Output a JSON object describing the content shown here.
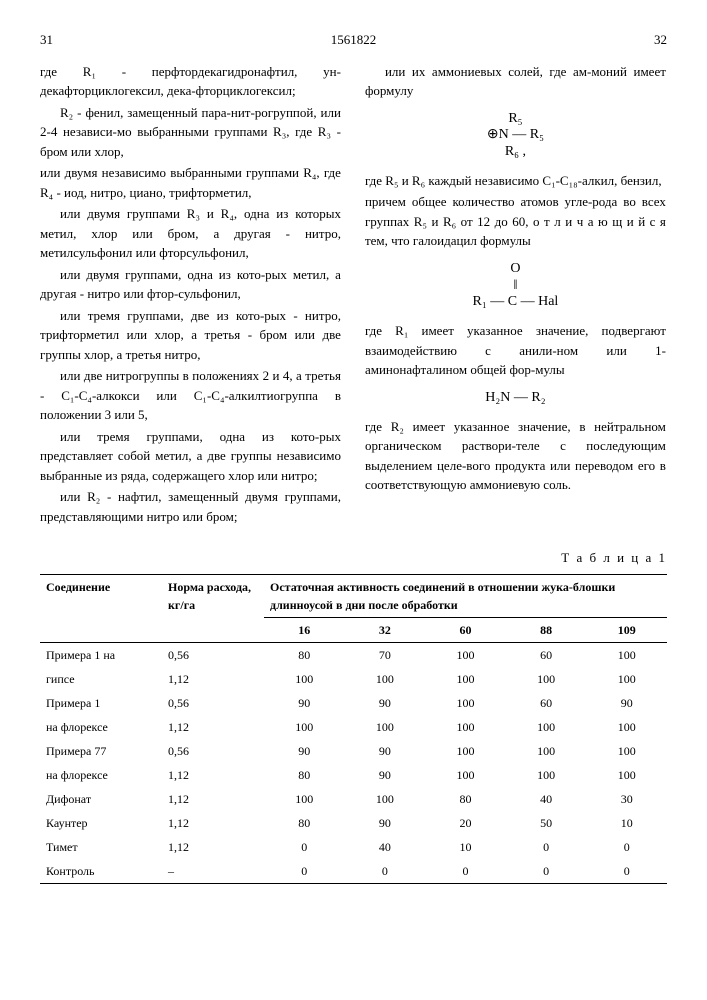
{
  "header": {
    "page_left": "31",
    "doc_number": "1561822",
    "page_right": "32"
  },
  "left_column": {
    "p1": "где R₁ - перфтордекагидронафтил, ун-декафторциклогексил, дека-фторциклогексил;",
    "p2": "R₂ - фенил, замещенный пара-нит-рогруппой, или 2-4 независи-мо выбранными группами R₃, где R₃ - бром или хлор,",
    "p3": "или двумя независимо выбранными группами R₄, где R₄ - иод, нитро, циано, трифторметил,",
    "p4": "или двумя группами R₃ и R₄, одна из которых метил, хлор или бром, а другая - нитро, метилсульфонил или фторсульфонил,",
    "p5": "или двумя группами, одна из кото-рых метил, а другая - нитро или фтор-сульфонил,",
    "p6": "или тремя группами, две из кото-рых - нитро, трифторметил или хлор, а третья - бром или две группы хлор, а третья нитро,",
    "p7": "или две нитрогруппы в положениях 2 и 4, а третья - C₁-C₄-алкокси или C₁-C₄-алкилтиогруппа в положении 3 или 5,",
    "p8": "или тремя группами, одна из кото-рых представляет собой метил, а две группы независимо выбранные из ряда, содержащего хлор или нитро;",
    "p9": "или R₂ - нафтил, замещенный двумя группами, представляющими нитро или бром;"
  },
  "right_column": {
    "p1": "или их аммониевых солей, где ам-моний имеет формулу",
    "formula1_line1": "    R₅",
    "formula1_line2": "⊕N — R₅",
    "formula1_line3": "    R₆ ,",
    "p2": "где R₅ и R₆ каждый независимо C₁-C₁₈-алкил, бензил,",
    "p3": "причем общее количество атомов угле-рода во всех группах R₅ и R₆ от 12 до 60, о т л и ч а ю щ и й с я тем, что галоидацил формулы",
    "formula2_line1": "O",
    "formula2_line2": "‖",
    "formula2_line3": "R₁ — C — Hal",
    "p4": "где R₁ имеет указанное значение, подвергают взаимодействию с анили-ном или 1-аминонафталином общей фор-мулы",
    "formula3": "H₂N — R₂",
    "p5": "где R₂ имеет указанное значение, в нейтральном органическом раствори-теле с последующим выделением целе-вого продукта или переводом его в соответствующую аммониевую соль."
  },
  "line_numbers": {
    "n5": "5",
    "n10": "10",
    "n15": "15",
    "n20": "20",
    "n25": "25",
    "n30": "30"
  },
  "table": {
    "caption": "Т а б л и ц а 1",
    "header1_col1": "Соединение",
    "header1_col2": "Норма расхода, кг/га",
    "header1_col3": "Остаточная активность соединений в отношении жука-блошки длинноусой в дни после обработки",
    "header2_days": [
      "16",
      "32",
      "60",
      "88",
      "109"
    ],
    "rows": [
      {
        "name": "Примера 1 на",
        "rate": "0,56",
        "v": [
          "80",
          "70",
          "100",
          "60",
          "100"
        ]
      },
      {
        "name": "гипсе",
        "rate": "1,12",
        "v": [
          "100",
          "100",
          "100",
          "100",
          "100"
        ]
      },
      {
        "name": "Примера 1",
        "rate": "0,56",
        "v": [
          "90",
          "90",
          "100",
          "60",
          "90"
        ]
      },
      {
        "name": "на флорексе",
        "rate": "1,12",
        "v": [
          "100",
          "100",
          "100",
          "100",
          "100"
        ]
      },
      {
        "name": "Примера 77",
        "rate": "0,56",
        "v": [
          "90",
          "90",
          "100",
          "100",
          "100"
        ]
      },
      {
        "name": "на флорексе",
        "rate": "1,12",
        "v": [
          "80",
          "90",
          "100",
          "100",
          "100"
        ]
      },
      {
        "name": "Дифонат",
        "rate": "1,12",
        "v": [
          "100",
          "100",
          "80",
          "40",
          "30"
        ]
      },
      {
        "name": "Каунтер",
        "rate": "1,12",
        "v": [
          "80",
          "90",
          "20",
          "50",
          "10"
        ]
      },
      {
        "name": "Тимет",
        "rate": "1,12",
        "v": [
          "0",
          "40",
          "10",
          "0",
          "0"
        ]
      },
      {
        "name": "Контроль",
        "rate": "–",
        "v": [
          "0",
          "0",
          "0",
          "0",
          "0"
        ]
      }
    ]
  }
}
